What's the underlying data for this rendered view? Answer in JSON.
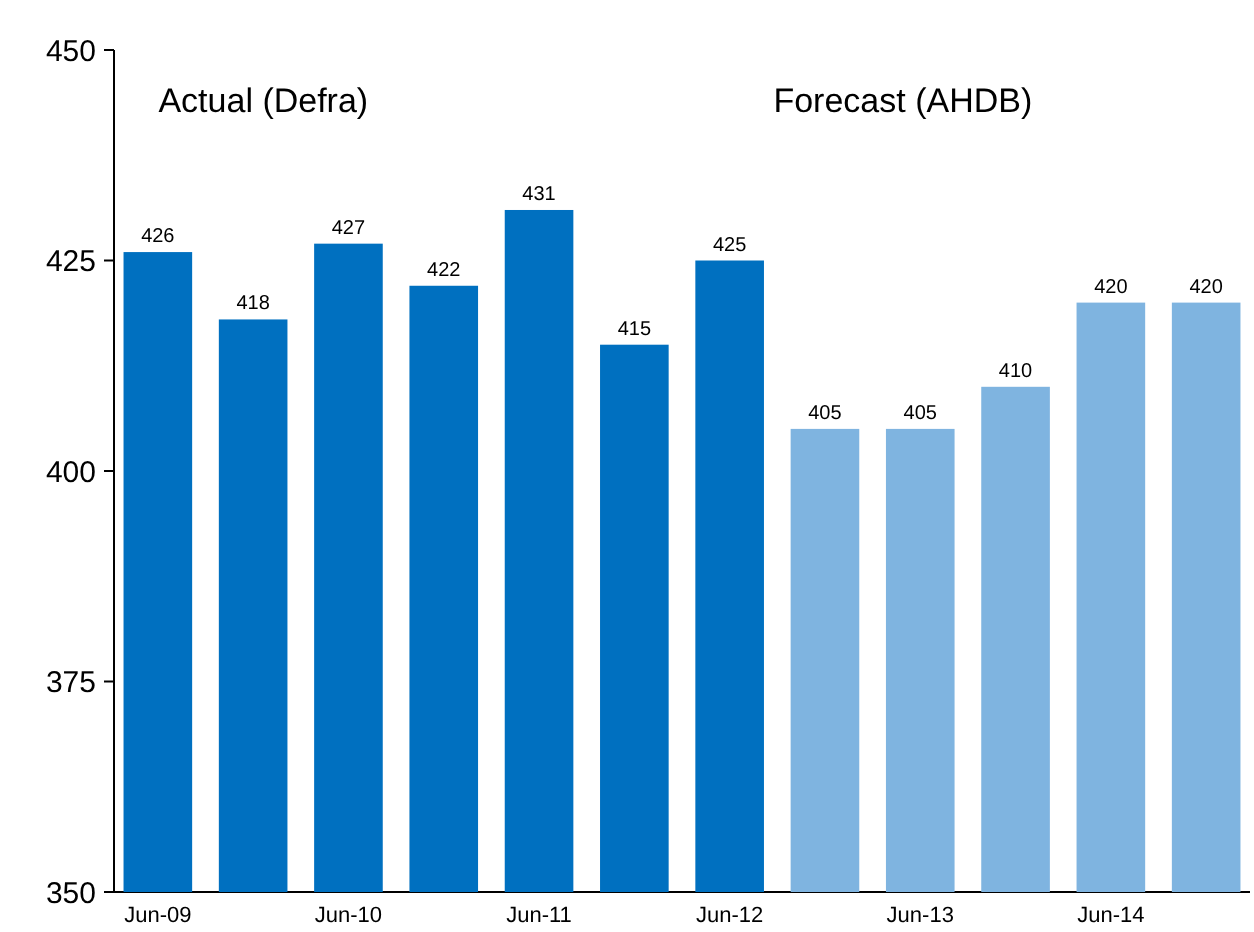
{
  "chart_data": {
    "type": "bar",
    "categories": [
      "Jun-09",
      null,
      "Jun-10",
      null,
      "Jun-11",
      null,
      "Jun-12",
      null,
      "Jun-13",
      null,
      "Jun-14",
      null
    ],
    "values": [
      426,
      418,
      427,
      422,
      431,
      415,
      425,
      405,
      405,
      410,
      420,
      420
    ],
    "colors": [
      "#0070c0",
      "#0070c0",
      "#0070c0",
      "#0070c0",
      "#0070c0",
      "#0070c0",
      "#0070c0",
      "#7fb4e0",
      "#7fb4e0",
      "#7fb4e0",
      "#7fb4e0",
      "#7fb4e0"
    ],
    "ylim": [
      350,
      450
    ],
    "yticks": [
      350,
      375,
      400,
      425,
      450
    ],
    "data_labels": true,
    "annotations": [
      "Actual (Defra)",
      "Forecast (AHDB)"
    ]
  }
}
